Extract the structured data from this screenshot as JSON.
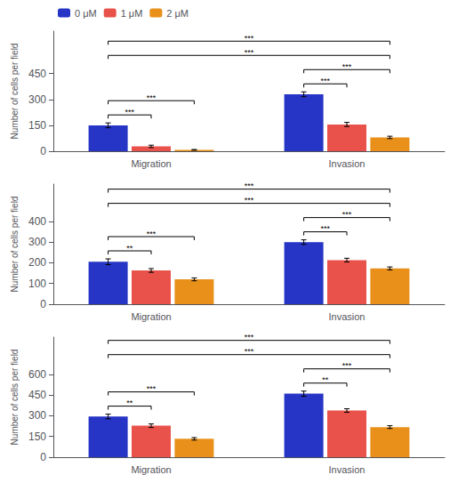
{
  "chart_data": [
    {
      "type": "bar",
      "categories": [
        "Migration",
        "Invasion"
      ],
      "series": [
        {
          "name": "0 μM",
          "color": "#2635c5",
          "values": [
            150,
            330
          ],
          "errors": [
            14,
            14
          ]
        },
        {
          "name": "1 μM",
          "color": "#e8524a",
          "values": [
            28,
            155
          ],
          "errors": [
            7,
            12
          ]
        },
        {
          "name": "2 μM",
          "color": "#e8901a",
          "values": [
            8,
            80
          ],
          "errors": [
            2,
            7
          ]
        }
      ],
      "y_label": "Number of cells per field",
      "ylim": [
        0,
        696
      ],
      "yticks": [
        0,
        150,
        300,
        450
      ],
      "grid": false,
      "legend": "upper left",
      "annotations": [
        {
          "text": "***",
          "from": {
            "category": "Migration",
            "series": "0 μM"
          },
          "to": {
            "category": "Migration",
            "series": "1 μM"
          }
        },
        {
          "text": "***",
          "from": {
            "category": "Migration",
            "series": "0 μM"
          },
          "to": {
            "category": "Migration",
            "series": "2 μM"
          }
        },
        {
          "text": "***",
          "from": {
            "category": "Invasion",
            "series": "0 μM"
          },
          "to": {
            "category": "Invasion",
            "series": "1 μM"
          }
        },
        {
          "text": "***",
          "from": {
            "category": "Invasion",
            "series": "0 μM"
          },
          "to": {
            "category": "Invasion",
            "series": "2 μM"
          }
        },
        {
          "text": "***",
          "from": {
            "category": "Migration",
            "series": "0 μM"
          },
          "to": {
            "category": "Invasion",
            "series": "2 μM"
          }
        },
        {
          "text": "***",
          "from": {
            "category": "Migration",
            "series": "0 μM"
          },
          "to": {
            "category": "Invasion",
            "series": "2 μM"
          }
        }
      ]
    },
    {
      "type": "bar",
      "categories": [
        "Migration",
        "Invasion"
      ],
      "series": [
        {
          "name": "0 μM",
          "color": "#2635c5",
          "values": [
            205,
            300
          ],
          "errors": [
            14,
            11
          ]
        },
        {
          "name": "1 μM",
          "color": "#e8524a",
          "values": [
            163,
            213
          ],
          "errors": [
            9,
            9
          ]
        },
        {
          "name": "2 μM",
          "color": "#e8901a",
          "values": [
            120,
            173
          ],
          "errors": [
            7,
            7
          ]
        }
      ],
      "y_label": "Number of cells per field",
      "ylim": [
        0,
        580
      ],
      "yticks": [
        0,
        100,
        200,
        300,
        400
      ],
      "grid": false,
      "annotations": [
        {
          "text": "**",
          "from": {
            "category": "Migration",
            "series": "0 μM"
          },
          "to": {
            "category": "Migration",
            "series": "1 μM"
          }
        },
        {
          "text": "***",
          "from": {
            "category": "Migration",
            "series": "0 μM"
          },
          "to": {
            "category": "Migration",
            "series": "2 μM"
          }
        },
        {
          "text": "***",
          "from": {
            "category": "Invasion",
            "series": "0 μM"
          },
          "to": {
            "category": "Invasion",
            "series": "1 μM"
          }
        },
        {
          "text": "***",
          "from": {
            "category": "Invasion",
            "series": "0 μM"
          },
          "to": {
            "category": "Invasion",
            "series": "2 μM"
          }
        },
        {
          "text": "***",
          "from": {
            "category": "Migration",
            "series": "0 μM"
          },
          "to": {
            "category": "Invasion",
            "series": "2 μM"
          }
        },
        {
          "text": "***",
          "from": {
            "category": "Migration",
            "series": "0 μM"
          },
          "to": {
            "category": "Invasion",
            "series": "2 μM"
          }
        }
      ]
    },
    {
      "type": "bar",
      "categories": [
        "Migration",
        "Invasion"
      ],
      "series": [
        {
          "name": "0 μM",
          "color": "#2635c5",
          "values": [
            295,
            460
          ],
          "errors": [
            17,
            19
          ]
        },
        {
          "name": "1 μM",
          "color": "#e8524a",
          "values": [
            228,
            338
          ],
          "errors": [
            13,
            13
          ]
        },
        {
          "name": "2 μM",
          "color": "#e8901a",
          "values": [
            133,
            218
          ],
          "errors": [
            9,
            10
          ]
        }
      ],
      "y_label": "Number of cells per field",
      "ylim": [
        0,
        870
      ],
      "yticks": [
        0,
        150,
        300,
        450,
        600
      ],
      "grid": false,
      "annotations": [
        {
          "text": "**",
          "from": {
            "category": "Migration",
            "series": "0 μM"
          },
          "to": {
            "category": "Migration",
            "series": "1 μM"
          }
        },
        {
          "text": "***",
          "from": {
            "category": "Migration",
            "series": "0 μM"
          },
          "to": {
            "category": "Migration",
            "series": "2 μM"
          }
        },
        {
          "text": "**",
          "from": {
            "category": "Invasion",
            "series": "0 μM"
          },
          "to": {
            "category": "Invasion",
            "series": "1 μM"
          }
        },
        {
          "text": "***",
          "from": {
            "category": "Invasion",
            "series": "0 μM"
          },
          "to": {
            "category": "Invasion",
            "series": "2 μM"
          }
        },
        {
          "text": "***",
          "from": {
            "category": "Migration",
            "series": "0 μM"
          },
          "to": {
            "category": "Invasion",
            "series": "2 μM"
          }
        },
        {
          "text": "***",
          "from": {
            "category": "Migration",
            "series": "0 μM"
          },
          "to": {
            "category": "Invasion",
            "series": "2 μM"
          }
        }
      ]
    }
  ]
}
